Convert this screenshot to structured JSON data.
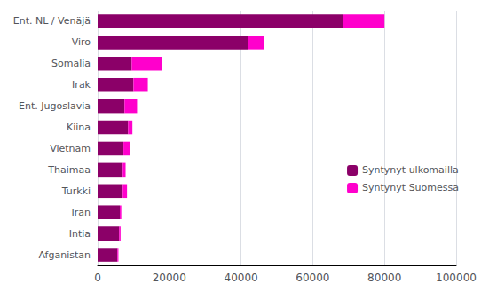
{
  "chart_data": {
    "type": "bar",
    "orientation": "horizontal",
    "stacked": true,
    "categories": [
      "Ent. NL / Venäjä",
      "Viro",
      "Somalia",
      "Irak",
      "Ent. Jugoslavia",
      "Kiina",
      "Vietnam",
      "Thaimaa",
      "Turkki",
      "Iran",
      "Intia",
      "Afganistan"
    ],
    "series": [
      {
        "name": "Syntynyt ulkomailla",
        "color": "#8B0068",
        "values": [
          68500,
          42000,
          9500,
          10000,
          7500,
          8500,
          7200,
          7000,
          7000,
          6200,
          6000,
          5500
        ]
      },
      {
        "name": "Syntynyt Suomessa",
        "color": "#ff00cc",
        "values": [
          11500,
          4500,
          8500,
          4000,
          3500,
          1200,
          1800,
          800,
          1200,
          400,
          400,
          300
        ]
      }
    ],
    "xlim": [
      0,
      100000
    ],
    "xticks": [
      0,
      20000,
      40000,
      60000,
      80000,
      100000
    ],
    "grid": true,
    "legend": "right"
  }
}
